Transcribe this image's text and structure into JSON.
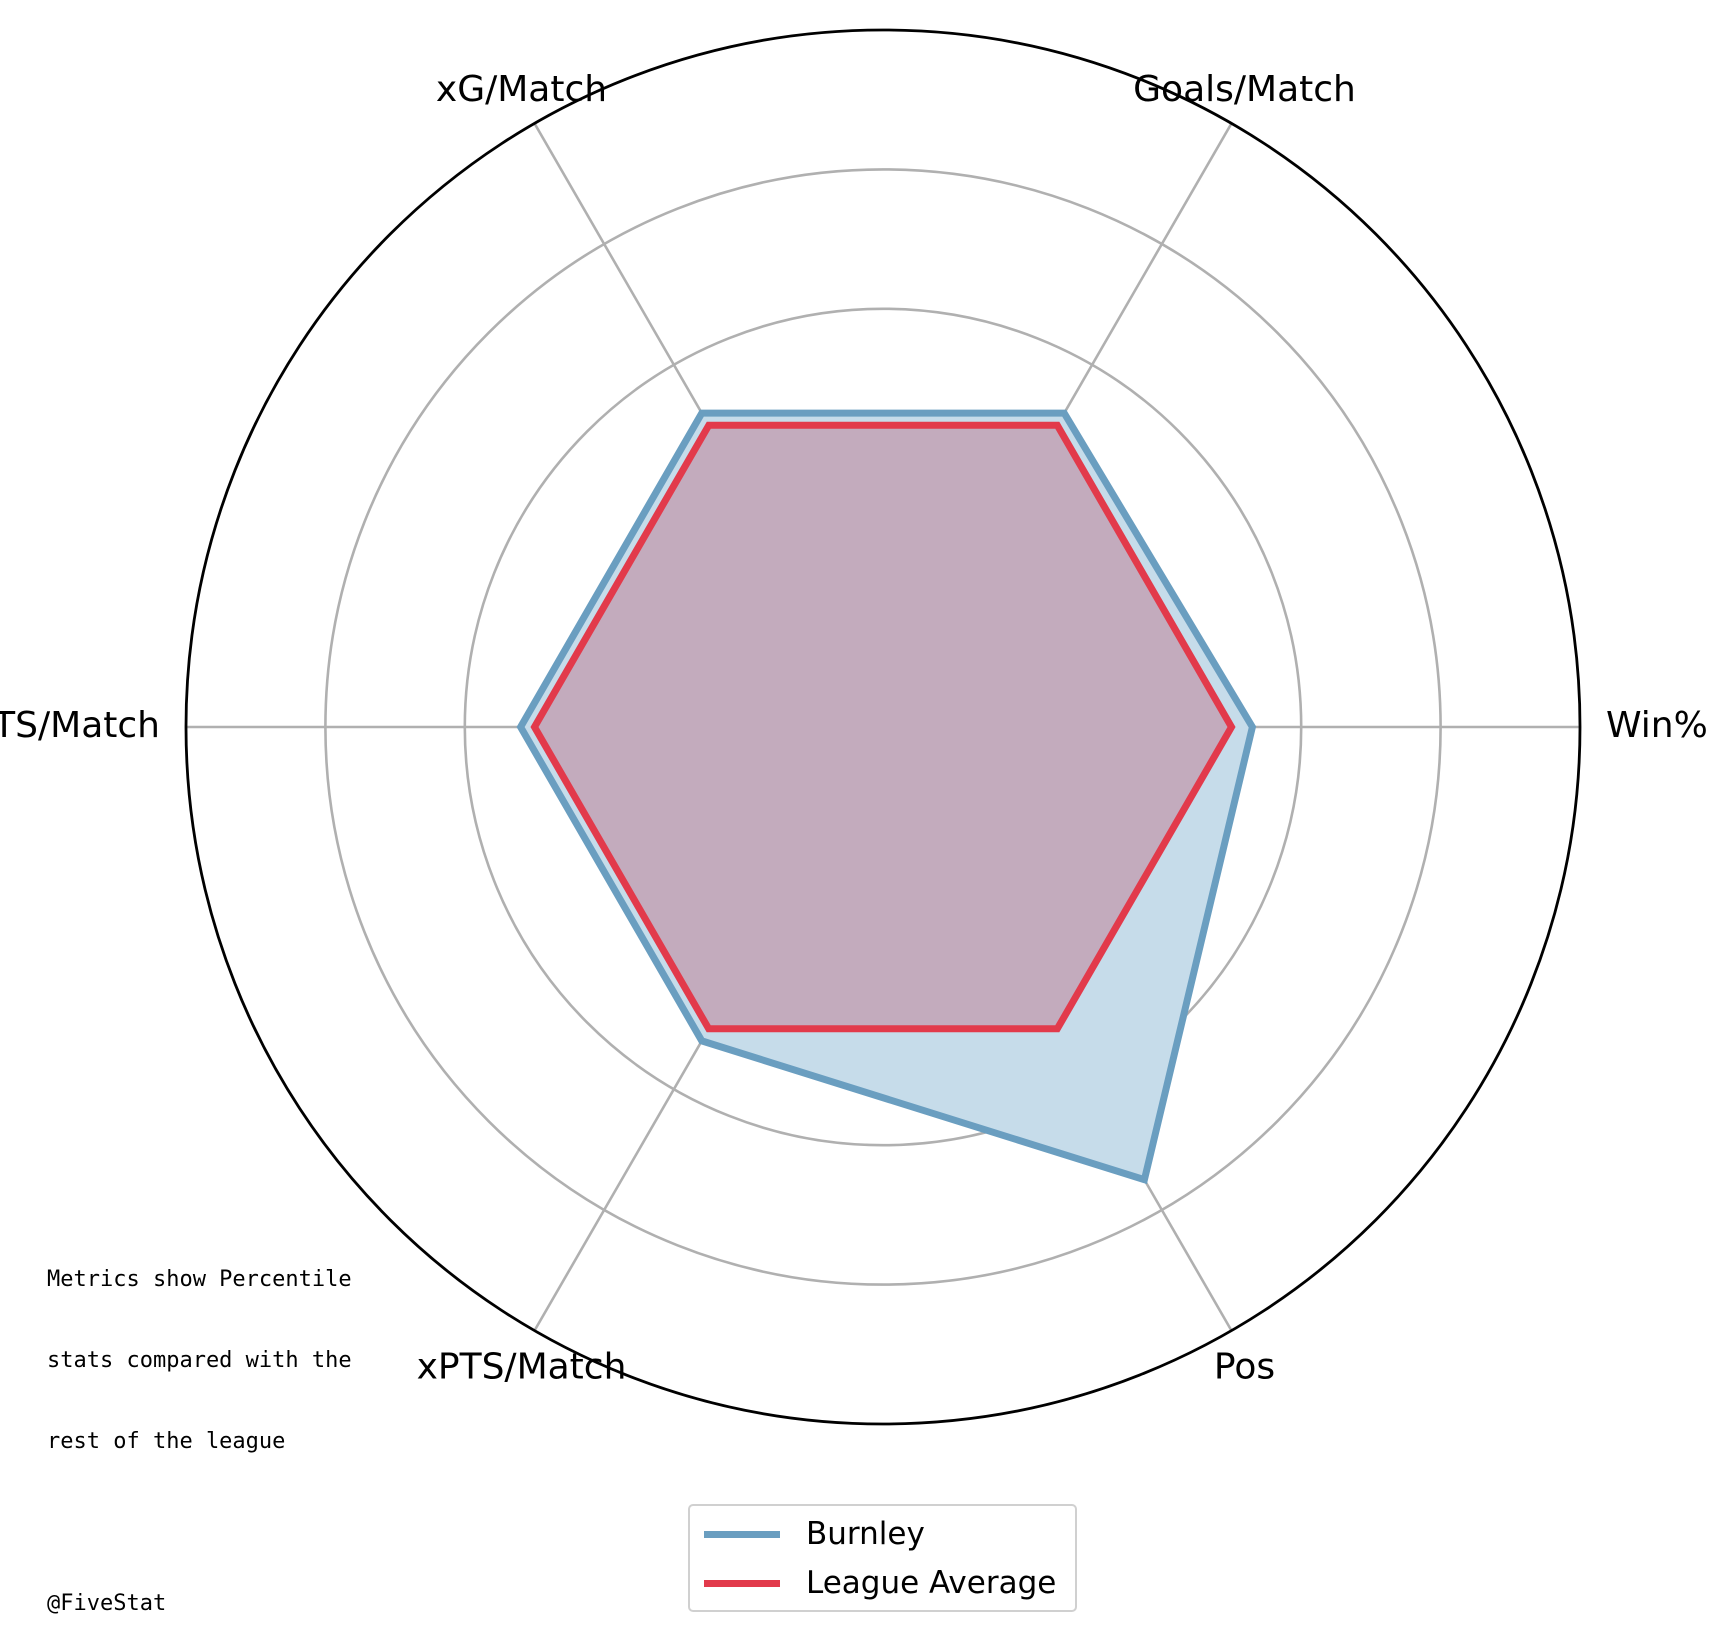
{
  "chart_data": {
    "type": "radar",
    "axes": [
      "Win%",
      "Goals/Match",
      "xG/Match",
      "PTS/Match",
      "xPTS/Match",
      "Pos"
    ],
    "rlim": [
      0,
      100
    ],
    "rings": [
      20,
      40,
      60,
      80,
      100
    ],
    "grid": true,
    "legend_position": "bottom-center",
    "series": [
      {
        "name": "Burnley",
        "values": [
          53,
          52,
          52,
          52,
          52,
          75
        ],
        "color": "#6a9ec0",
        "fill": "#c6dcea"
      },
      {
        "name": "League Average",
        "values": [
          50,
          50,
          50,
          50,
          50,
          50
        ],
        "color": "#e23a4b",
        "fill": "rgba(190, 110, 135, 0.45)"
      }
    ]
  },
  "annotation": {
    "lines": [
      "Metrics show Percentile",
      "stats compared with the",
      "rest of the league",
      "",
      "@FiveStat"
    ]
  }
}
